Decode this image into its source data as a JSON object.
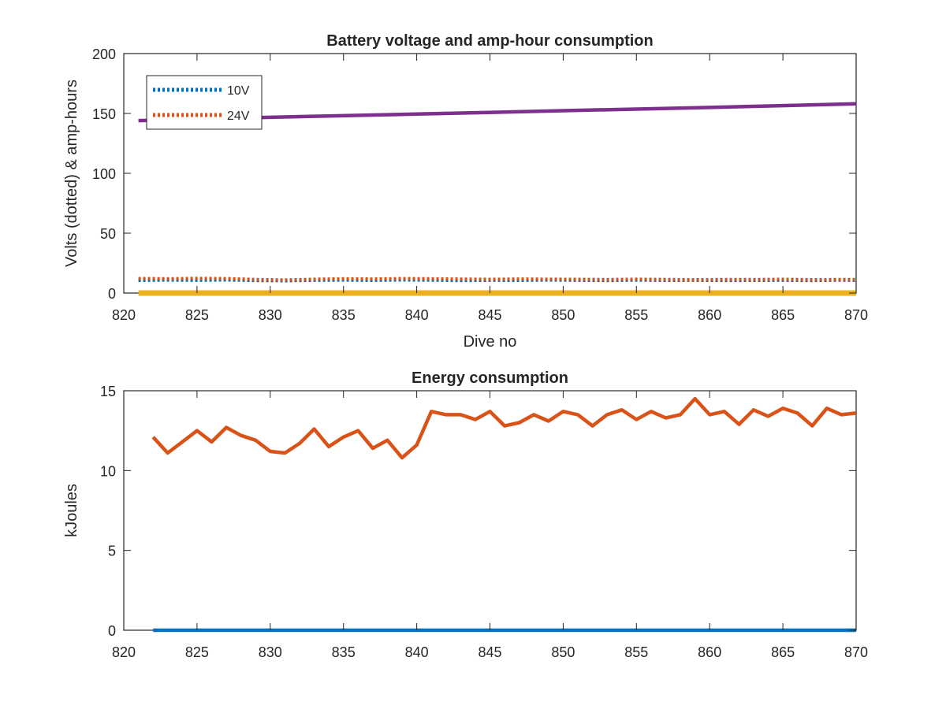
{
  "chart_data": [
    {
      "type": "line",
      "title": "Battery voltage and amp-hour consumption",
      "xlabel": "Dive no",
      "ylabel": "Volts (dotted) & amp-hours",
      "xlim": [
        820,
        870
      ],
      "ylim": [
        0,
        200
      ],
      "xticks": [
        820,
        825,
        830,
        835,
        840,
        845,
        850,
        855,
        860,
        865,
        870
      ],
      "yticks": [
        0,
        50,
        100,
        150,
        200
      ],
      "grid": false,
      "legend": "top-left",
      "series": [
        {
          "name": "10V",
          "style": "dotted",
          "color": "#0072BD",
          "x": [
            821,
            823,
            825,
            827,
            829,
            831,
            833,
            835,
            837,
            839,
            841,
            843,
            845,
            847,
            849,
            851,
            853,
            855,
            857,
            859,
            861,
            863,
            865,
            867,
            869,
            870
          ],
          "y": [
            10.5,
            10.8,
            10.6,
            10.9,
            10.4,
            10.2,
            10.6,
            10.8,
            10.5,
            10.9,
            10.7,
            10.4,
            10.6,
            10.5,
            10.8,
            10.6,
            10.4,
            10.7,
            10.5,
            10.6,
            10.4,
            10.5,
            10.6,
            10.4,
            10.7,
            10.5
          ]
        },
        {
          "name": "24V",
          "style": "dotted",
          "color": "#D95319",
          "x": [
            821,
            823,
            825,
            827,
            829,
            831,
            833,
            835,
            837,
            839,
            841,
            843,
            845,
            847,
            849,
            851,
            853,
            855,
            857,
            859,
            861,
            863,
            865,
            867,
            869,
            870
          ],
          "y": [
            12.2,
            12.0,
            12.3,
            12.1,
            11.4,
            11.0,
            11.6,
            12.0,
            11.8,
            12.1,
            12.0,
            11.7,
            11.5,
            11.8,
            11.6,
            11.5,
            11.3,
            11.6,
            11.4,
            11.2,
            11.4,
            11.3,
            11.5,
            11.2,
            11.4,
            11.3
          ]
        },
        {
          "style": "solid",
          "color": "#7E2F8E",
          "x": [
            821,
            830,
            840,
            850,
            860,
            870
          ],
          "y": [
            144,
            146.8,
            149.5,
            152.3,
            155,
            158
          ]
        },
        {
          "style": "solid",
          "color": "#EDB120",
          "x": [
            821,
            870
          ],
          "y": [
            0,
            0
          ]
        }
      ]
    },
    {
      "type": "line",
      "title": "Energy consumption",
      "xlabel": "",
      "ylabel": "kJoules",
      "xlim": [
        820,
        870
      ],
      "ylim": [
        0,
        15
      ],
      "xticks": [
        820,
        825,
        830,
        835,
        840,
        845,
        850,
        855,
        860,
        865,
        870
      ],
      "yticks": [
        0,
        5,
        10,
        15
      ],
      "grid": false,
      "series": [
        {
          "style": "solid",
          "color": "#D95319",
          "x": [
            822,
            823,
            824,
            825,
            826,
            827,
            828,
            829,
            830,
            831,
            832,
            833,
            834,
            835,
            836,
            837,
            838,
            839,
            840,
            841,
            842,
            843,
            844,
            845,
            846,
            847,
            848,
            849,
            850,
            851,
            852,
            853,
            854,
            855,
            856,
            857,
            858,
            859,
            860,
            861,
            862,
            863,
            864,
            865,
            866,
            867,
            868,
            869,
            870
          ],
          "y": [
            12.1,
            11.1,
            11.8,
            12.5,
            11.8,
            12.7,
            12.2,
            11.9,
            11.2,
            11.1,
            11.7,
            12.6,
            11.5,
            12.1,
            12.5,
            11.4,
            11.9,
            10.8,
            11.6,
            13.7,
            13.5,
            13.5,
            13.2,
            13.7,
            12.8,
            13.0,
            13.5,
            13.1,
            13.7,
            13.5,
            12.8,
            13.5,
            13.8,
            13.2,
            13.7,
            13.3,
            13.5,
            14.5,
            13.5,
            13.7,
            12.9,
            13.8,
            13.4,
            13.9,
            13.6,
            12.8,
            13.9,
            13.5,
            13.6
          ]
        },
        {
          "style": "solid",
          "color": "#0072BD",
          "x": [
            822,
            870
          ],
          "y": [
            0,
            0
          ]
        }
      ]
    }
  ]
}
